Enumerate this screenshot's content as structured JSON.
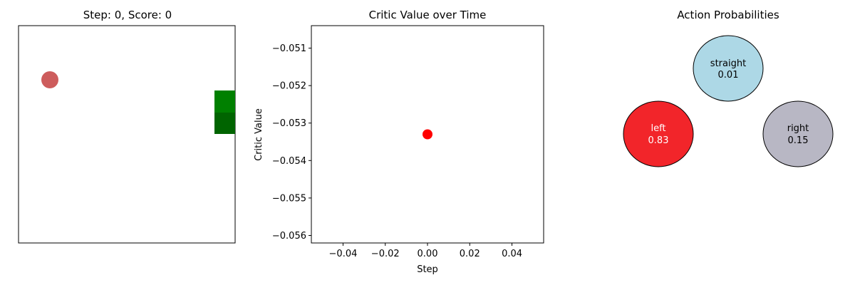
{
  "game_panel": {
    "title": "Step: 0, Score: 0",
    "colors": {
      "food": "#cd5c5c",
      "snake_body": "#008000",
      "snake_head": "#006400"
    }
  },
  "chart_data": [
    {
      "type": "scatter",
      "title": "Critic Value over Time",
      "xlabel": "Step",
      "ylabel": "Critic Value",
      "xlim": [
        -0.055,
        0.055
      ],
      "ylim": [
        -0.0562,
        -0.0504
      ],
      "x_ticks": [
        -0.04,
        -0.02,
        0.0,
        0.02,
        0.04
      ],
      "x_tick_labels": [
        "−0.04",
        "−0.02",
        "0.00",
        "0.02",
        "0.04"
      ],
      "y_ticks": [
        -0.051,
        -0.052,
        -0.053,
        -0.054,
        -0.055,
        -0.056
      ],
      "y_tick_labels": [
        "−0.051",
        "−0.052",
        "−0.053",
        "−0.054",
        "−0.055",
        "−0.056"
      ],
      "points": [
        {
          "x": 0,
          "y": -0.0533
        }
      ],
      "color": "#ff0000",
      "grid": false
    },
    {
      "type": "bubble",
      "title": "Action Probabilities",
      "actions": [
        {
          "name": "straight",
          "label": "0.01",
          "probability": 0.01,
          "color": "#add8e6",
          "text_color": "#000000"
        },
        {
          "name": "left",
          "label": "0.83",
          "probability": 0.83,
          "color": "#f2252a",
          "text_color": "#ffffff"
        },
        {
          "name": "right",
          "label": "0.15",
          "probability": 0.15,
          "color": "#b8b7c4",
          "text_color": "#000000"
        }
      ]
    }
  ]
}
